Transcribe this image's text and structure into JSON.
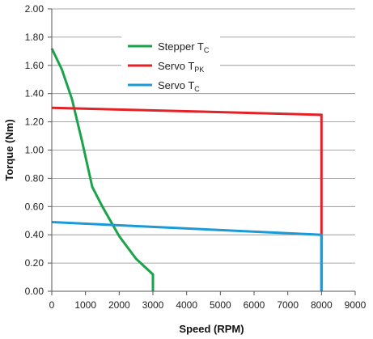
{
  "chart_data": {
    "type": "line",
    "xlabel": "Speed (RPM)",
    "ylabel": "Torque (Nm)",
    "xlim": [
      0,
      9000
    ],
    "ylim": [
      0,
      2.0
    ],
    "x_ticks": [
      "0",
      "1000",
      "2000",
      "3000",
      "4000",
      "5000",
      "6000",
      "7000",
      "8000",
      "9000"
    ],
    "y_ticks": [
      "0.00",
      "0.20",
      "0.40",
      "0.60",
      "0.80",
      "1.00",
      "1.20",
      "1.40",
      "1.60",
      "1.80",
      "2.00"
    ],
    "grid": "horizontal",
    "legend_position": "top-center",
    "series": [
      {
        "name": "Stepper T",
        "subscript": "C",
        "color": "#1aa34a",
        "x": [
          0,
          300,
          600,
          900,
          1200,
          1500,
          2000,
          2500,
          3000,
          3000
        ],
        "y": [
          1.72,
          1.57,
          1.36,
          1.06,
          0.74,
          0.6,
          0.39,
          0.23,
          0.12,
          0.0
        ]
      },
      {
        "name": "Servo T",
        "subscript": "PK",
        "color": "#e32228",
        "x": [
          0,
          8000,
          8000
        ],
        "y": [
          1.3,
          1.25,
          0.0
        ]
      },
      {
        "name": "Servo T",
        "subscript": "C",
        "color": "#1d9ad6",
        "x": [
          0,
          8000,
          8000
        ],
        "y": [
          0.49,
          0.4,
          0.0
        ]
      }
    ]
  }
}
